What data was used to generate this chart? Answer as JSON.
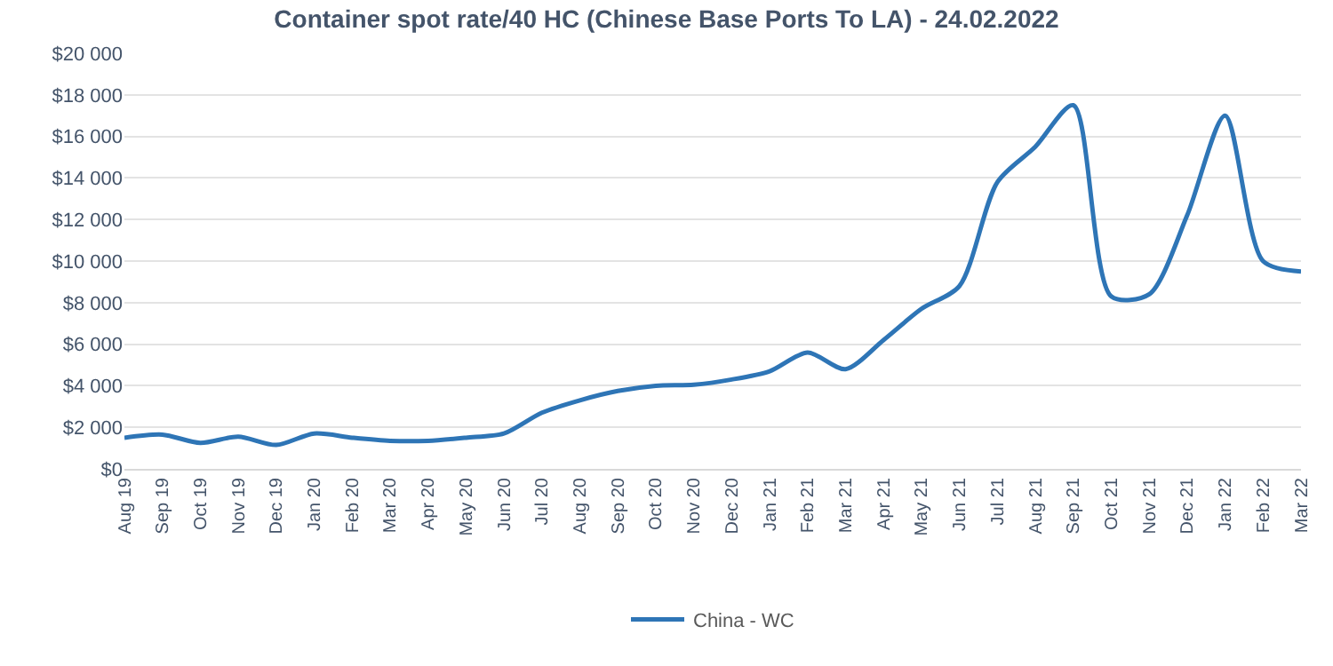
{
  "chart_data": {
    "type": "line",
    "title": "Container spot rate/40 HC (Chinese Base Ports To LA) - 24.02.2022",
    "categories": [
      "Aug 19",
      "Sep 19",
      "Oct 19",
      "Nov 19",
      "Dec 19",
      "Jan 20",
      "Feb 20",
      "Mar 20",
      "Apr 20",
      "May 20",
      "Jun 20",
      "Jul 20",
      "Aug 20",
      "Sep 20",
      "Oct 20",
      "Nov 20",
      "Dec 20",
      "Jan 21",
      "Feb 21",
      "Mar 21",
      "Apr 21",
      "May 21",
      "Jun 21",
      "Jul 21",
      "Aug 21",
      "Sep 21",
      "Oct 21",
      "Nov 21",
      "Dec 21",
      "Jan 22",
      "Feb 22",
      "Mar 22"
    ],
    "series": [
      {
        "name": "China - WC",
        "color": "#2e75b6",
        "values": [
          1500,
          1650,
          1250,
          1550,
          1150,
          1700,
          1500,
          1350,
          1350,
          1500,
          1700,
          2700,
          3300,
          3750,
          4000,
          4050,
          4300,
          4700,
          5600,
          4800,
          6200,
          7700,
          8800,
          13800,
          15500,
          17500,
          8300,
          8400,
          12200,
          17000,
          10000,
          9500
        ]
      }
    ],
    "ylim": [
      0,
      20000
    ],
    "yticks": [
      {
        "value": 0,
        "label": "$0"
      },
      {
        "value": 2000,
        "label": "$2 000"
      },
      {
        "value": 4000,
        "label": "$4 000"
      },
      {
        "value": 6000,
        "label": "$6 000"
      },
      {
        "value": 8000,
        "label": "$8 000"
      },
      {
        "value": 10000,
        "label": "$10 000"
      },
      {
        "value": 12000,
        "label": "$12 000"
      },
      {
        "value": 14000,
        "label": "$14 000"
      },
      {
        "value": 16000,
        "label": "$16 000"
      },
      {
        "value": 18000,
        "label": "$18 000"
      },
      {
        "value": 20000,
        "label": "$20 000"
      }
    ],
    "grid": "y",
    "legend": "bottom",
    "marker": "none",
    "line_style": "solid"
  }
}
